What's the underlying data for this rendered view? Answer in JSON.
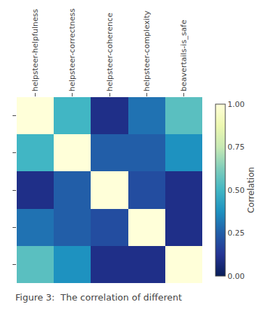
{
  "chart_data": {
    "type": "heatmap",
    "categories": [
      "helpsteer-helpfulness",
      "helpsteer-correctness",
      "helpsteer-coherence",
      "helpsteer-complexity",
      "beavertails-is_safe"
    ],
    "values": [
      [
        1.0,
        0.5,
        0.1,
        0.3,
        0.55
      ],
      [
        0.5,
        1.0,
        0.25,
        0.25,
        0.38
      ],
      [
        0.1,
        0.25,
        1.0,
        0.2,
        0.1
      ],
      [
        0.3,
        0.25,
        0.2,
        1.0,
        0.1
      ],
      [
        0.55,
        0.38,
        0.1,
        0.1,
        1.0
      ]
    ],
    "color": "YlGnBu_r",
    "colorbar_label": "Correlation",
    "colorbar_range": [
      0.0,
      1.0
    ],
    "colorbar_ticks": [
      {
        "value": 0.0,
        "label": "0.00"
      },
      {
        "value": 0.25,
        "label": "0.25"
      },
      {
        "value": 0.5,
        "label": "0.50"
      },
      {
        "value": 0.75,
        "label": "0.75"
      },
      {
        "value": 1.0,
        "label": "1.00"
      }
    ],
    "caption": "Figure 3:  The correlation of different",
    "tick_labels": "x",
    "grid": false
  }
}
